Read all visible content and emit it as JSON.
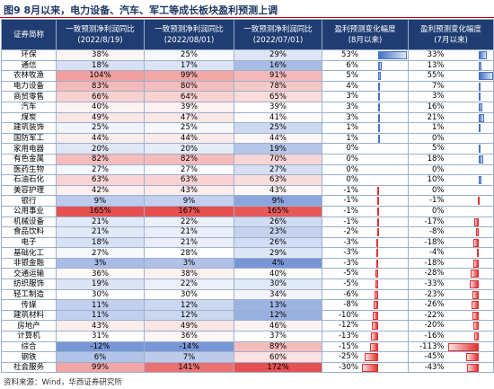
{
  "title": "图9 8月以来，电力设备、汽车、军工等成长板块盈利预测上调",
  "table": {
    "header": [
      [
        "证券简称"
      ],
      [
        "一致预测净利润同比",
        "(2022/8/19)"
      ],
      [
        "一致预测净利润同比",
        "(2022/08/01)"
      ],
      [
        "一致预测净利润同比",
        "(2022/07/01)"
      ],
      [
        "盈利预测变化幅度",
        "(8月以来)"
      ],
      [
        "盈利预测变化幅度",
        "(7月以来)"
      ]
    ],
    "rows": [
      [
        "环保",
        "38%",
        "25%",
        "29%",
        "53%",
        "33%"
      ],
      [
        "通信",
        "18%",
        "17%",
        "16%",
        "6%",
        "13%"
      ],
      [
        "农林牧渔",
        "104%",
        "99%",
        "91%",
        "5%",
        "55%"
      ],
      [
        "电力设备",
        "83%",
        "80%",
        "78%",
        "4%",
        "7%"
      ],
      [
        "商贸零售",
        "66%",
        "64%",
        "65%",
        "3%",
        "3%"
      ],
      [
        "汽车",
        "40%",
        "39%",
        "39%",
        "3%",
        "16%"
      ],
      [
        "煤炭",
        "49%",
        "47%",
        "41%",
        "3%",
        "21%"
      ],
      [
        "建筑装饰",
        "25%",
        "25%",
        "25%",
        "1%",
        "1%"
      ],
      [
        "国防军工",
        "44%",
        "44%",
        "44%",
        "1%",
        "0%"
      ],
      [
        "家用电器",
        "20%",
        "20%",
        "19%",
        "0%",
        "5%"
      ],
      [
        "有色金属",
        "82%",
        "82%",
        "70%",
        "0%",
        "18%"
      ],
      [
        "医药生物",
        "27%",
        "27%",
        "27%",
        "0%",
        "0%"
      ],
      [
        "石油石化",
        "63%",
        "63%",
        "63%",
        "0%",
        "10%"
      ],
      [
        "美容护理",
        "42%",
        "43%",
        "43%",
        "-1%",
        "0%"
      ],
      [
        "银行",
        "9%",
        "9%",
        "9%",
        "-1%",
        "-1%"
      ],
      [
        "公用事业",
        "165%",
        "167%",
        "165%",
        "-1%",
        "0%"
      ],
      [
        "机械设备",
        "21%",
        "22%",
        "26%",
        "-1%",
        "-17%"
      ],
      [
        "食品饮料",
        "21%",
        "21%",
        "23%",
        "-2%",
        "-8%"
      ],
      [
        "电子",
        "18%",
        "21%",
        "26%",
        "-3%",
        "-18%"
      ],
      [
        "基础化工",
        "27%",
        "28%",
        "29%",
        "-3%",
        "-4%"
      ],
      [
        "非银金融",
        "3%",
        "3%",
        "4%",
        "-3%",
        "-18%"
      ],
      [
        "交通运输",
        "36%",
        "38%",
        "40%",
        "-5%",
        "-28%"
      ],
      [
        "纺织服饰",
        "19%",
        "22%",
        "30%",
        "-5%",
        "-33%"
      ],
      [
        "轻工制造",
        "30%",
        "30%",
        "34%",
        "-6%",
        "-23%"
      ],
      [
        "传媒",
        "11%",
        "12%",
        "13%",
        "-8%",
        "-26%"
      ],
      [
        "建筑材料",
        "11%",
        "12%",
        "12%",
        "-10%",
        "-22%"
      ],
      [
        "房地产",
        "43%",
        "49%",
        "46%",
        "-12%",
        "-20%"
      ],
      [
        "计算机",
        "31%",
        "36%",
        "37%",
        "-13%",
        "-16%"
      ],
      [
        "综合",
        "-12%",
        "-14%",
        "89%",
        "-15%",
        "-113%"
      ],
      [
        "钢铁",
        "6%",
        "7%",
        "60%",
        "-25%",
        "-45%"
      ],
      [
        "社会服务",
        "99%",
        "141%",
        "172%",
        "-30%",
        "-43%"
      ]
    ]
  },
  "source": "资料来源：Wind，华西证券研究所"
}
